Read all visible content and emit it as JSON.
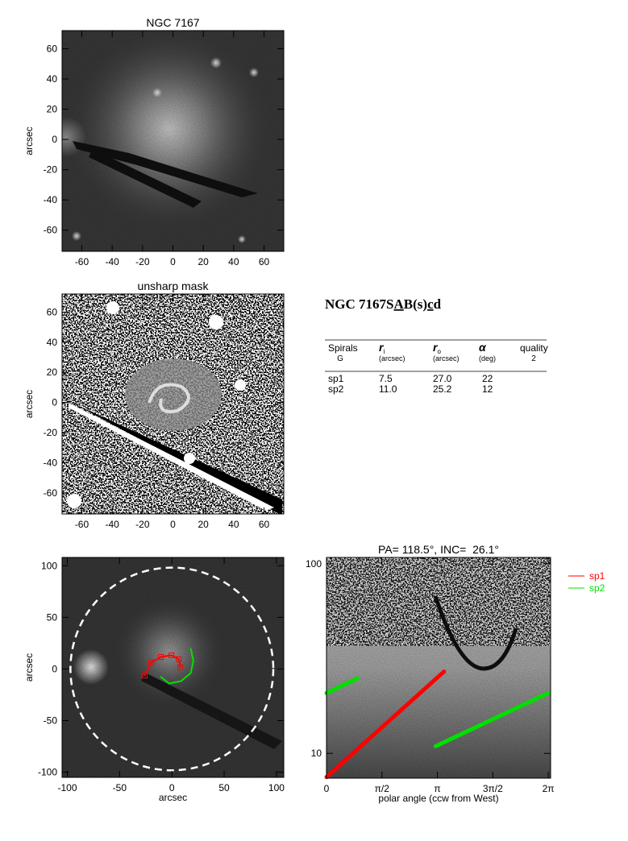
{
  "chart_data": [
    {
      "type": "image",
      "title": "NGC 7167",
      "ylabel": "arcsec",
      "background": "galaxy",
      "xlim": [
        -73,
        73
      ],
      "ylim": [
        -74,
        72
      ],
      "xticks": [
        -60,
        -40,
        -20,
        0,
        20,
        40,
        60
      ],
      "yticks": [
        -60,
        -40,
        -20,
        0,
        20,
        40,
        60
      ]
    },
    {
      "type": "image",
      "title": "unsharp mask",
      "ylabel": "arcsec",
      "background": "unsharp",
      "xlim": [
        -73,
        73
      ],
      "ylim": [
        -74,
        72
      ],
      "xticks": [
        -60,
        -40,
        -20,
        0,
        20,
        40,
        60
      ],
      "yticks": [
        -60,
        -40,
        -20,
        0,
        20,
        40,
        60
      ]
    },
    {
      "type": "image",
      "xlabel": "arcsec",
      "ylabel": "arcsec",
      "background": "wide",
      "xlim": [
        -105,
        107
      ],
      "ylim": [
        -105,
        108
      ],
      "xticks": [
        -100,
        -50,
        0,
        50,
        100
      ],
      "yticks": [
        -100,
        -50,
        0,
        50,
        100
      ],
      "circle_radius": 97,
      "series": [
        {
          "color": "#ff0000",
          "marker": "square",
          "x": [
            -25.9,
            -19.7,
            -10.4,
            -0.4,
            6.6,
            8.1
          ],
          "values": [
            -6.3,
            6.3,
            11.7,
            13.3,
            9.4,
            1.6
          ]
        },
        {
          "color": "#00e000",
          "x": [
            18.1,
            20.5,
            18.1,
            8.9,
            -2.7,
            -10.4
          ],
          "values": [
            19.5,
            7.8,
            -3.9,
            -11.7,
            -14.1,
            -7.8
          ]
        }
      ]
    },
    {
      "type": "line",
      "title": "PA= 118.5°, INC=  26.1°",
      "xlabel": "polar angle (ccw from West)",
      "background": "polar",
      "log_y": true,
      "xlim": [
        0,
        6.35
      ],
      "ylim": [
        7.4,
        108
      ],
      "xticks": [
        0,
        {
          "value": 1.5708,
          "label": "π/2"
        },
        {
          "value": 3.1416,
          "label": "π"
        },
        {
          "value": 4.7124,
          "label": "3π/2"
        },
        {
          "value": 6.2832,
          "label": "2π"
        }
      ],
      "yticks": [
        10,
        100
      ],
      "legend": "outside-right",
      "series": [
        {
          "name": "sp1",
          "color": "#ff0000",
          "x": [
            0,
            3.33
          ],
          "values": [
            7.5,
            27.0
          ]
        },
        {
          "name": "sp2",
          "color": "#00e000",
          "x": [
            0,
            0.88,
            null,
            3.09,
            6.28
          ],
          "values": [
            20.8,
            24.9,
            null,
            10.9,
            20.8
          ]
        }
      ]
    }
  ],
  "table": {
    "title": "NGC 7167",
    "morphology": [
      "S",
      "A",
      "B(s)",
      "c",
      "d"
    ],
    "underlined": [
      1,
      3
    ],
    "header": [
      {
        "label": "Spirals",
        "sub": "G"
      },
      {
        "symbol": "r",
        "index": "i",
        "unit": "(arcsec)"
      },
      {
        "symbol": "r",
        "index": "o",
        "unit": "(arcsec)"
      },
      {
        "symbol": "α",
        "unit": "(deg)"
      },
      {
        "label": "quality",
        "sub": "2"
      }
    ],
    "rows": [
      [
        "sp1",
        "7.5",
        "27.0",
        "22"
      ],
      [
        "sp2",
        "11.0",
        "25.2",
        "12"
      ]
    ]
  }
}
